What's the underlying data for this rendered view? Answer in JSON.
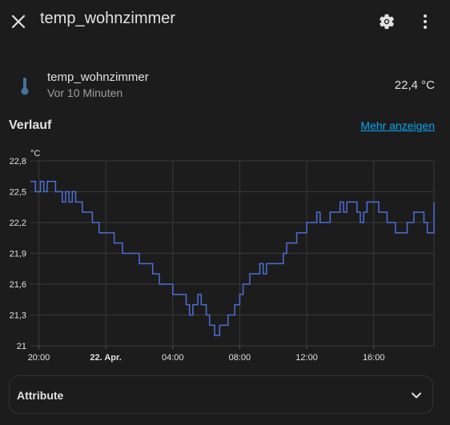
{
  "header": {
    "title": "temp_wohnzimmer",
    "icons": [
      "close-icon",
      "gear-icon",
      "more-vertical-icon"
    ]
  },
  "entity": {
    "name": "temp_wohnzimmer",
    "last_changed": "Vor 10 Minuten",
    "state": "22,4 °C",
    "icon": "thermometer-icon",
    "icon_color": "#44739e"
  },
  "history": {
    "title": "Verlauf",
    "show_more": "Mehr anzeigen"
  },
  "attributes": {
    "label": "Attribute"
  },
  "colors": {
    "line": "#4c6fd8",
    "link": "#03a9f4",
    "background": "#1c1c1c"
  },
  "chart_data": {
    "type": "line",
    "ylabel": "°C",
    "ylim": [
      21,
      22.8
    ],
    "y_ticks": [
      "22,8",
      "22,5",
      "22,2",
      "21,9",
      "21,6",
      "21,3",
      "21"
    ],
    "x_ticks": [
      "20:00",
      "22. Apr.",
      "04:00",
      "08:00",
      "12:00",
      "16:00"
    ],
    "x_tick_hours": [
      0,
      4,
      8,
      12,
      16,
      20
    ],
    "xlim_hours": [
      -0.5,
      23.6
    ],
    "grid": true,
    "step": true,
    "series": [
      {
        "values_hours": [
          -0.5,
          -0.2,
          0.1,
          0.3,
          0.5,
          1,
          1.4,
          1.6,
          1.8,
          2,
          2.2,
          2.4,
          2.6,
          2.8,
          3.2,
          3.6,
          4,
          4.5,
          5,
          5.5,
          6,
          6.4,
          6.8,
          7,
          7.2,
          7.6,
          8,
          8.2,
          8.6,
          8.8,
          9,
          9.2,
          9.5,
          9.7,
          10,
          10.2,
          10.5,
          10.8,
          11,
          11.3,
          11.5,
          11.7,
          12,
          12.2,
          12.6,
          12.8,
          13,
          13.2,
          13.4,
          13.6,
          14,
          14.3,
          14.6,
          14.8,
          15.4,
          16,
          16.6,
          16.8,
          17.4,
          17.8,
          18,
          18.2,
          18.4,
          18.6,
          19,
          19.2,
          19.4,
          19.6,
          20,
          20.3,
          20.6,
          20.8,
          21,
          21.3,
          21.6,
          22,
          22.4,
          22.8,
          23,
          23.2,
          23.4,
          23.6
        ],
        "values": [
          22.6,
          22.5,
          22.6,
          22.5,
          22.6,
          22.5,
          22.4,
          22.5,
          22.4,
          22.5,
          22.4,
          22.4,
          22.3,
          22.3,
          22.2,
          22.1,
          22.1,
          22,
          21.9,
          21.9,
          21.8,
          21.8,
          21.7,
          21.7,
          21.6,
          21.6,
          21.5,
          21.5,
          21.5,
          21.4,
          21.3,
          21.4,
          21.5,
          21.4,
          21.3,
          21.2,
          21.1,
          21.2,
          21.2,
          21.3,
          21.3,
          21.4,
          21.5,
          21.6,
          21.7,
          21.7,
          21.7,
          21.8,
          21.7,
          21.8,
          21.8,
          21.8,
          21.9,
          22.0,
          22.1,
          22.2,
          22.3,
          22.2,
          22.3,
          22.3,
          22.4,
          22.3,
          22.4,
          22.4,
          22.3,
          22.2,
          22.3,
          22.4,
          22.4,
          22.3,
          22.3,
          22.2,
          22.2,
          22.1,
          22.1,
          22.2,
          22.3,
          22.3,
          22.2,
          22.1,
          22.1,
          22.4
        ]
      }
    ]
  }
}
